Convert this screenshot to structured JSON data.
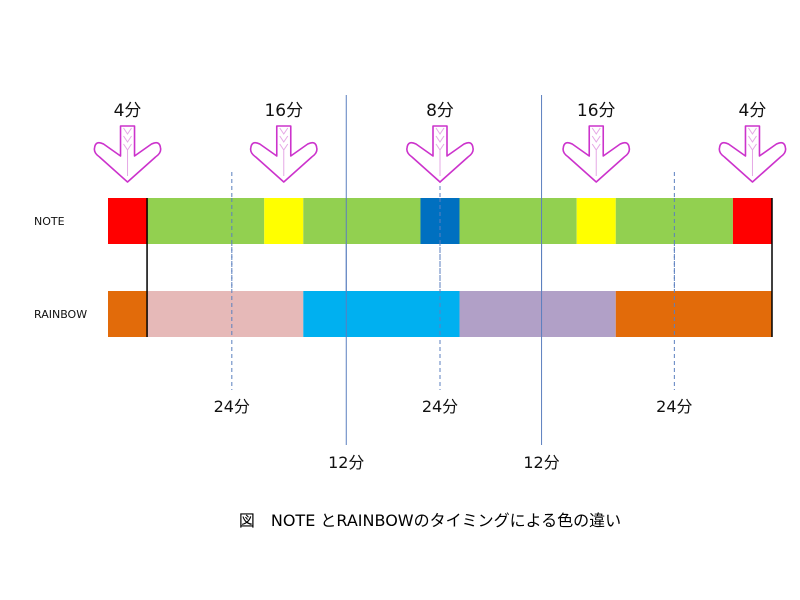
{
  "rows": [
    {
      "label": "NOTE",
      "segments": [
        {
          "start": 0,
          "end": 1,
          "color": "#ff0000"
        },
        {
          "start": 1,
          "end": 4,
          "color": "#92d050"
        },
        {
          "start": 4,
          "end": 5,
          "color": "#ffff00"
        },
        {
          "start": 5,
          "end": 8,
          "color": "#92d050"
        },
        {
          "start": 8,
          "end": 9,
          "color": "#0070c0"
        },
        {
          "start": 9,
          "end": 12,
          "color": "#92d050"
        },
        {
          "start": 12,
          "end": 13,
          "color": "#ffff00"
        },
        {
          "start": 13,
          "end": 16,
          "color": "#92d050"
        },
        {
          "start": 16,
          "end": 17,
          "color": "#ff0000"
        }
      ]
    },
    {
      "label": "RAINBOW",
      "segments": [
        {
          "start": 0,
          "end": 1,
          "color": "#e26b0a"
        },
        {
          "start": 1,
          "end": 5,
          "color": "#e6b9b8"
        },
        {
          "start": 5,
          "end": 9,
          "color": "#00b0f0"
        },
        {
          "start": 9,
          "end": 13,
          "color": "#b1a0c7"
        },
        {
          "start": 13,
          "end": 17,
          "color": "#e26b0a"
        }
      ]
    }
  ],
  "arrows": [
    {
      "label": "4分",
      "at": 0.5
    },
    {
      "label": "16分",
      "at": 4.5
    },
    {
      "label": "8分",
      "at": 8.5
    },
    {
      "label": "16分",
      "at": 12.5
    },
    {
      "label": "4分",
      "at": 16.5
    }
  ],
  "guides": [
    {
      "label": "24分",
      "at": 3.17,
      "style": "dashed",
      "tier": 1
    },
    {
      "label": "24分",
      "at": 8.5,
      "style": "dashed",
      "tier": 1
    },
    {
      "label": "24分",
      "at": 14.5,
      "style": "dashed",
      "tier": 1
    },
    {
      "label": "12分",
      "at": 6.1,
      "style": "solid",
      "tier": 2
    },
    {
      "label": "12分",
      "at": 11.1,
      "style": "solid",
      "tier": 2
    }
  ],
  "boundaries": [
    1,
    17
  ],
  "caption": "図　NOTE とRAINBOWのタイミングによる色の違い",
  "colors": {
    "arrow_stroke": "#cc33cc",
    "arrow_inner": "#e6a8e6",
    "guide_line": "#5b7fbf",
    "boundary_line": "#000000"
  }
}
